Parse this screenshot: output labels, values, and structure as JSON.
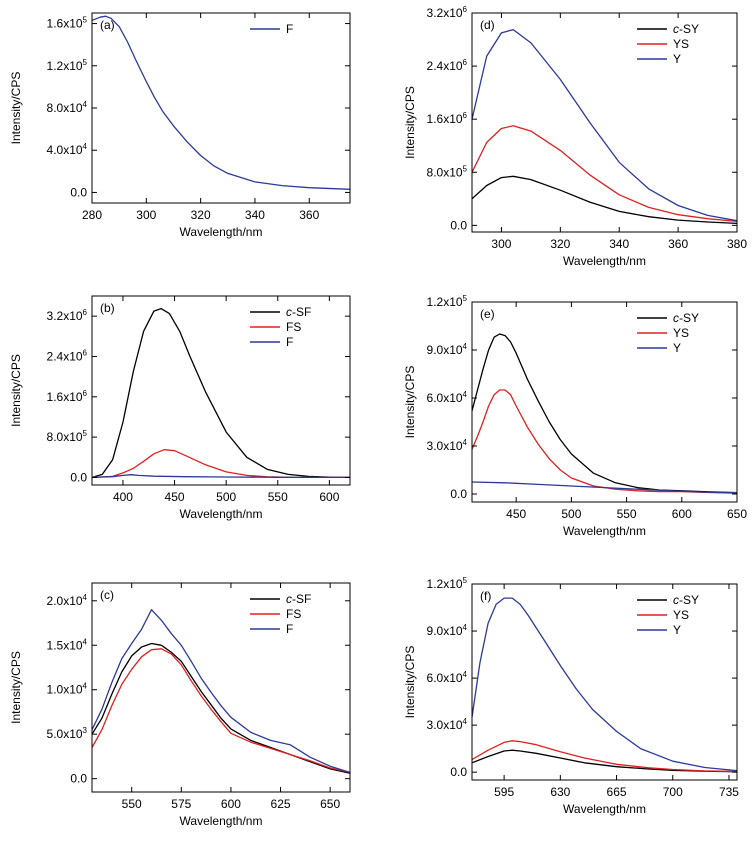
{
  "chart_data": [
    {
      "panel": "(a)",
      "type": "line",
      "xlabel": "Wavelength/nm",
      "ylabel": "Intensity/CPS",
      "xlim": [
        280,
        375
      ],
      "ylim": [
        -10000,
        170000
      ],
      "xticks": [
        280,
        300,
        320,
        340,
        360
      ],
      "xtick_labels": [
        "280",
        "300",
        "320",
        "340",
        "360"
      ],
      "yticks": [
        0,
        40000,
        80000,
        120000,
        160000
      ],
      "ytick_labels": [
        {
          "m": "0.0",
          "e": ""
        },
        {
          "m": "4.0x10",
          "e": "4"
        },
        {
          "m": "8.0x10",
          "e": "4"
        },
        {
          "m": "1.2x10",
          "e": "5"
        },
        {
          "m": "1.6x10",
          "e": "5"
        }
      ],
      "legend_position": "top-right",
      "series": [
        {
          "name": "F",
          "color": "#2b3a9a",
          "x": [
            280,
            283,
            285,
            287,
            290,
            293,
            296,
            300,
            303,
            306,
            310,
            315,
            320,
            325,
            330,
            340,
            350,
            360,
            375
          ],
          "y": [
            163000,
            166000,
            167000,
            165000,
            157000,
            143000,
            126000,
            105000,
            90000,
            77000,
            63000,
            48000,
            35000,
            25000,
            18000,
            10000,
            6500,
            4500,
            3000
          ]
        }
      ]
    },
    {
      "panel": "(d)",
      "type": "line",
      "xlabel": "Wavelength/nm",
      "ylabel": "Intensity/CPS",
      "xlim": [
        290,
        380
      ],
      "ylim": [
        -100000,
        3200000
      ],
      "xticks": [
        300,
        320,
        340,
        360,
        380
      ],
      "xtick_labels": [
        "300",
        "320",
        "340",
        "360",
        "380"
      ],
      "yticks": [
        0,
        800000,
        1600000,
        2400000,
        3200000
      ],
      "ytick_labels": [
        {
          "m": "0.0",
          "e": ""
        },
        {
          "m": "8.0x10",
          "e": "5"
        },
        {
          "m": "1.6x10",
          "e": "6"
        },
        {
          "m": "2.4x10",
          "e": "6"
        },
        {
          "m": "3.2x10",
          "e": "6"
        }
      ],
      "legend_position": "top-right",
      "series": [
        {
          "name": "c-SY",
          "italic_prefix": "c",
          "rest": "-SY",
          "color": "#000000",
          "x": [
            290,
            295,
            300,
            304,
            310,
            320,
            330,
            340,
            350,
            360,
            370,
            380
          ],
          "y": [
            400000,
            600000,
            720000,
            740000,
            690000,
            530000,
            350000,
            210000,
            130000,
            80000,
            50000,
            30000
          ]
        },
        {
          "name": "YS",
          "color": "#e02020",
          "x": [
            290,
            295,
            300,
            304,
            310,
            320,
            330,
            340,
            350,
            360,
            370,
            380
          ],
          "y": [
            800000,
            1250000,
            1460000,
            1500000,
            1420000,
            1130000,
            760000,
            460000,
            270000,
            160000,
            100000,
            60000
          ]
        },
        {
          "name": "Y",
          "color": "#2b3a9a",
          "x": [
            290,
            295,
            300,
            304,
            310,
            320,
            330,
            340,
            350,
            360,
            370,
            380
          ],
          "y": [
            1600000,
            2550000,
            2900000,
            2950000,
            2750000,
            2200000,
            1550000,
            950000,
            550000,
            300000,
            150000,
            70000
          ]
        }
      ]
    },
    {
      "panel": "(b)",
      "type": "line",
      "xlabel": "Wavelength/nm",
      "ylabel": "Intensity/CPS",
      "xlim": [
        370,
        620
      ],
      "ylim": [
        -150000,
        3600000
      ],
      "xticks": [
        400,
        450,
        500,
        550,
        600
      ],
      "xtick_labels": [
        "400",
        "450",
        "500",
        "550",
        "600"
      ],
      "yticks": [
        0,
        800000,
        1600000,
        2400000,
        3200000
      ],
      "ytick_labels": [
        {
          "m": "0.0",
          "e": ""
        },
        {
          "m": "8.0x10",
          "e": "5"
        },
        {
          "m": "1.6x10",
          "e": "6"
        },
        {
          "m": "2.4x10",
          "e": "6"
        },
        {
          "m": "3.2x10",
          "e": "6"
        }
      ],
      "legend_position": "top-right",
      "series": [
        {
          "name": "c-SF",
          "italic_prefix": "c",
          "rest": "-SF",
          "color": "#000000",
          "x": [
            370,
            380,
            390,
            400,
            410,
            420,
            430,
            437,
            445,
            455,
            465,
            480,
            500,
            520,
            540,
            560,
            580,
            600,
            620
          ],
          "y": [
            0,
            60000,
            350000,
            1100000,
            2100000,
            2900000,
            3300000,
            3350000,
            3250000,
            2900000,
            2400000,
            1700000,
            900000,
            400000,
            160000,
            60000,
            20000,
            5000,
            0
          ]
        },
        {
          "name": "FS",
          "color": "#e02020",
          "x": [
            370,
            390,
            400,
            410,
            420,
            430,
            440,
            450,
            460,
            480,
            500,
            520,
            540,
            560,
            620
          ],
          "y": [
            0,
            20000,
            90000,
            180000,
            320000,
            470000,
            550000,
            530000,
            440000,
            250000,
            110000,
            40000,
            12000,
            3000,
            0
          ]
        },
        {
          "name": "F",
          "color": "#2b3a9a",
          "x": [
            370,
            390,
            400,
            408,
            415,
            430,
            460,
            500,
            550,
            620
          ],
          "y": [
            0,
            15000,
            40000,
            55000,
            40000,
            25000,
            15000,
            8000,
            3000,
            0
          ]
        }
      ]
    },
    {
      "panel": "(e)",
      "type": "line",
      "xlabel": "Wavelength/nm",
      "ylabel": "Intensity/CPS",
      "xlim": [
        410,
        650
      ],
      "ylim": [
        -5000,
        120000
      ],
      "xticks": [
        450,
        500,
        550,
        600,
        650
      ],
      "xtick_labels": [
        "450",
        "500",
        "550",
        "600",
        "650"
      ],
      "yticks": [
        0,
        30000,
        60000,
        90000,
        120000
      ],
      "ytick_labels": [
        {
          "m": "0.0",
          "e": ""
        },
        {
          "m": "3.0x10",
          "e": "4"
        },
        {
          "m": "6.0x10",
          "e": "4"
        },
        {
          "m": "9.0x10",
          "e": "4"
        },
        {
          "m": "1.2x10",
          "e": "5"
        }
      ],
      "legend_position": "top-right",
      "series": [
        {
          "name": "c-SY",
          "italic_prefix": "c",
          "rest": "-SY",
          "color": "#000000",
          "x": [
            410,
            415,
            420,
            425,
            430,
            435,
            440,
            445,
            450,
            460,
            470,
            480,
            490,
            500,
            520,
            540,
            560,
            580,
            600,
            620,
            650
          ],
          "y": [
            52000,
            65000,
            78000,
            90000,
            98000,
            100000,
            99000,
            95000,
            88000,
            72000,
            58000,
            45000,
            34000,
            25000,
            13000,
            7000,
            4000,
            2500,
            2000,
            1500,
            800
          ]
        },
        {
          "name": "YS",
          "color": "#e02020",
          "x": [
            410,
            415,
            420,
            425,
            430,
            435,
            440,
            445,
            450,
            460,
            470,
            480,
            490,
            500,
            520,
            540,
            560,
            580,
            600,
            620,
            650
          ],
          "y": [
            28000,
            36000,
            45000,
            55000,
            62000,
            65000,
            65000,
            62000,
            55000,
            42000,
            31000,
            22000,
            15000,
            10000,
            5000,
            3000,
            2000,
            1500,
            1500,
            1000,
            500
          ]
        },
        {
          "name": "Y",
          "color": "#2b3a9a",
          "x": [
            410,
            440,
            470,
            500,
            530,
            560,
            590,
            620,
            650
          ],
          "y": [
            7500,
            7000,
            6000,
            5000,
            4000,
            3000,
            2000,
            1200,
            800
          ]
        }
      ]
    },
    {
      "panel": "(c)",
      "type": "line",
      "xlabel": "Wavelength/nm",
      "ylabel": "Intensity/CPS",
      "xlim": [
        530,
        660
      ],
      "ylim": [
        -1500,
        22000
      ],
      "xticks": [
        550,
        575,
        600,
        625,
        650
      ],
      "xtick_labels": [
        "550",
        "575",
        "600",
        "625",
        "650"
      ],
      "yticks": [
        0,
        5000,
        10000,
        15000,
        20000
      ],
      "ytick_labels": [
        {
          "m": "0.0",
          "e": ""
        },
        {
          "m": "5.0x10",
          "e": "3"
        },
        {
          "m": "1.0x10",
          "e": "4"
        },
        {
          "m": "1.5x10",
          "e": "4"
        },
        {
          "m": "2.0x10",
          "e": "4"
        }
      ],
      "legend_position": "top-right",
      "series": [
        {
          "name": "c-SF",
          "italic_prefix": "c",
          "rest": "-SF",
          "color": "#000000",
          "x": [
            530,
            535,
            540,
            545,
            550,
            555,
            560,
            565,
            570,
            575,
            580,
            585,
            590,
            595,
            600,
            610,
            620,
            630,
            640,
            650,
            660
          ],
          "y": [
            5000,
            6800,
            9500,
            12000,
            13800,
            14800,
            15200,
            15000,
            14200,
            13200,
            11500,
            9800,
            8300,
            6800,
            5600,
            4300,
            3500,
            2700,
            1900,
            1100,
            600
          ]
        },
        {
          "name": "FS",
          "color": "#e02020",
          "x": [
            530,
            535,
            540,
            545,
            550,
            555,
            560,
            565,
            570,
            575,
            580,
            585,
            590,
            595,
            600,
            610,
            620,
            630,
            640,
            650,
            660
          ],
          "y": [
            3500,
            5500,
            8200,
            10600,
            12300,
            13700,
            14500,
            14600,
            14000,
            12800,
            11000,
            9300,
            7800,
            6400,
            5100,
            4100,
            3400,
            2700,
            2000,
            1200,
            700
          ]
        },
        {
          "name": "F",
          "color": "#2b3a9a",
          "x": [
            530,
            535,
            540,
            545,
            550,
            555,
            560,
            565,
            570,
            575,
            580,
            585,
            590,
            595,
            600,
            610,
            620,
            630,
            640,
            650,
            660
          ],
          "y": [
            5500,
            7800,
            10800,
            13500,
            15200,
            16800,
            19000,
            17800,
            16300,
            15000,
            13200,
            11300,
            9700,
            8200,
            6900,
            5200,
            4300,
            3800,
            2400,
            1400,
            700
          ]
        }
      ]
    },
    {
      "panel": "(f)",
      "type": "line",
      "xlabel": "Wavelength/nm",
      "ylabel": "Intensity/CPS",
      "xlim": [
        575,
        740
      ],
      "ylim": [
        -5000,
        120000
      ],
      "xticks": [
        595,
        630,
        665,
        700,
        735
      ],
      "xtick_labels": [
        "595",
        "630",
        "665",
        "700",
        "735"
      ],
      "yticks": [
        0,
        30000,
        60000,
        90000,
        120000
      ],
      "ytick_labels": [
        {
          "m": "0.0",
          "e": ""
        },
        {
          "m": "3.0x10",
          "e": "4"
        },
        {
          "m": "6.0x10",
          "e": "4"
        },
        {
          "m": "9.0x10",
          "e": "4"
        },
        {
          "m": "1.2x10",
          "e": "5"
        }
      ],
      "legend_position": "top-right",
      "series": [
        {
          "name": "c-SY",
          "italic_prefix": "c",
          "rest": "-SY",
          "color": "#000000",
          "x": [
            575,
            585,
            595,
            600,
            605,
            615,
            630,
            645,
            665,
            685,
            700,
            720,
            740
          ],
          "y": [
            6000,
            10000,
            13500,
            14000,
            13500,
            12000,
            9000,
            6000,
            3500,
            2000,
            1200,
            600,
            300
          ]
        },
        {
          "name": "YS",
          "color": "#e02020",
          "x": [
            575,
            585,
            595,
            600,
            605,
            615,
            630,
            645,
            665,
            685,
            700,
            720,
            740
          ],
          "y": [
            8000,
            14000,
            19000,
            20000,
            19500,
            17500,
            13000,
            9000,
            5000,
            2800,
            1700,
            800,
            400
          ]
        },
        {
          "name": "Y",
          "color": "#2b3a9a",
          "x": [
            575,
            580,
            585,
            590,
            595,
            600,
            605,
            610,
            620,
            630,
            640,
            650,
            665,
            680,
            700,
            720,
            740
          ],
          "y": [
            35000,
            70000,
            95000,
            107000,
            111000,
            111000,
            107000,
            100000,
            84000,
            68000,
            53000,
            40000,
            26000,
            15000,
            7000,
            3000,
            1000
          ]
        }
      ]
    }
  ]
}
